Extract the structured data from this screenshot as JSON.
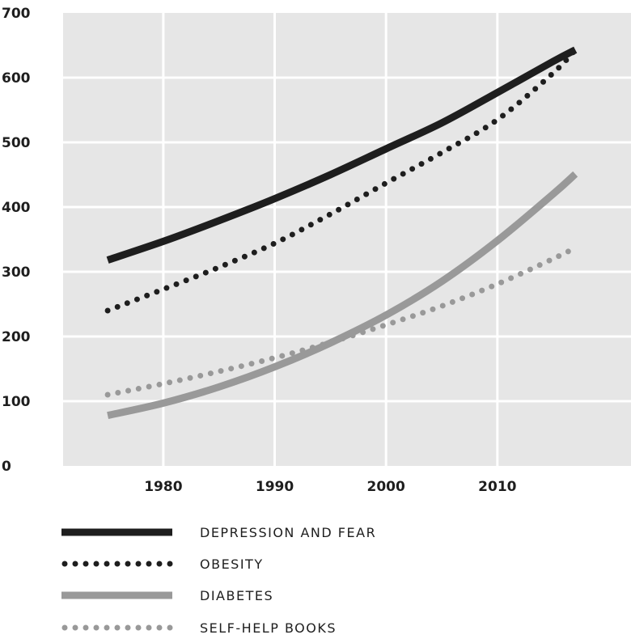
{
  "chart_data": {
    "type": "line",
    "title": "",
    "xlabel": "",
    "ylabel": "",
    "xlim": [
      1971,
      2022
    ],
    "ylim": [
      0,
      700
    ],
    "x_ticks": [
      "1980",
      "1990",
      "2000",
      "2010"
    ],
    "y_ticks": [
      "0",
      "100",
      "200",
      "300",
      "400",
      "500",
      "600",
      "700"
    ],
    "grid": true,
    "legend_position": "bottom",
    "series": [
      {
        "name": "DEPRESSION AND FEAR",
        "color": "#1e1e1e",
        "style": "solid",
        "x": [
          1975,
          1980,
          1985,
          1990,
          1995,
          2000,
          2005,
          2010,
          2015,
          2017
        ],
        "y": [
          318,
          347,
          379,
          413,
          450,
          490,
          530,
          577,
          625,
          643
        ]
      },
      {
        "name": "OBESITY",
        "color": "#1e1e1e",
        "style": "dotted",
        "x": [
          1975,
          1980,
          1985,
          1990,
          1995,
          2000,
          2005,
          2010,
          2015,
          2017
        ],
        "y": [
          240,
          273,
          307,
          344,
          389,
          437,
          484,
          535,
          607,
          643
        ]
      },
      {
        "name": "DIABETES",
        "color": "#999999",
        "style": "solid",
        "x": [
          1975,
          1980,
          1985,
          1990,
          1995,
          2000,
          2005,
          2010,
          2015,
          2017
        ],
        "y": [
          78,
          97,
          122,
          153,
          190,
          233,
          285,
          348,
          420,
          451
        ]
      },
      {
        "name": "SELF-HELP BOOKS",
        "color": "#999999",
        "style": "dotted",
        "x": [
          1975,
          1980,
          1985,
          1990,
          1995,
          2000,
          2005,
          2010,
          2015,
          2017
        ],
        "y": [
          110,
          127,
          146,
          167,
          191,
          218,
          247,
          281,
          320,
          337
        ]
      }
    ]
  }
}
